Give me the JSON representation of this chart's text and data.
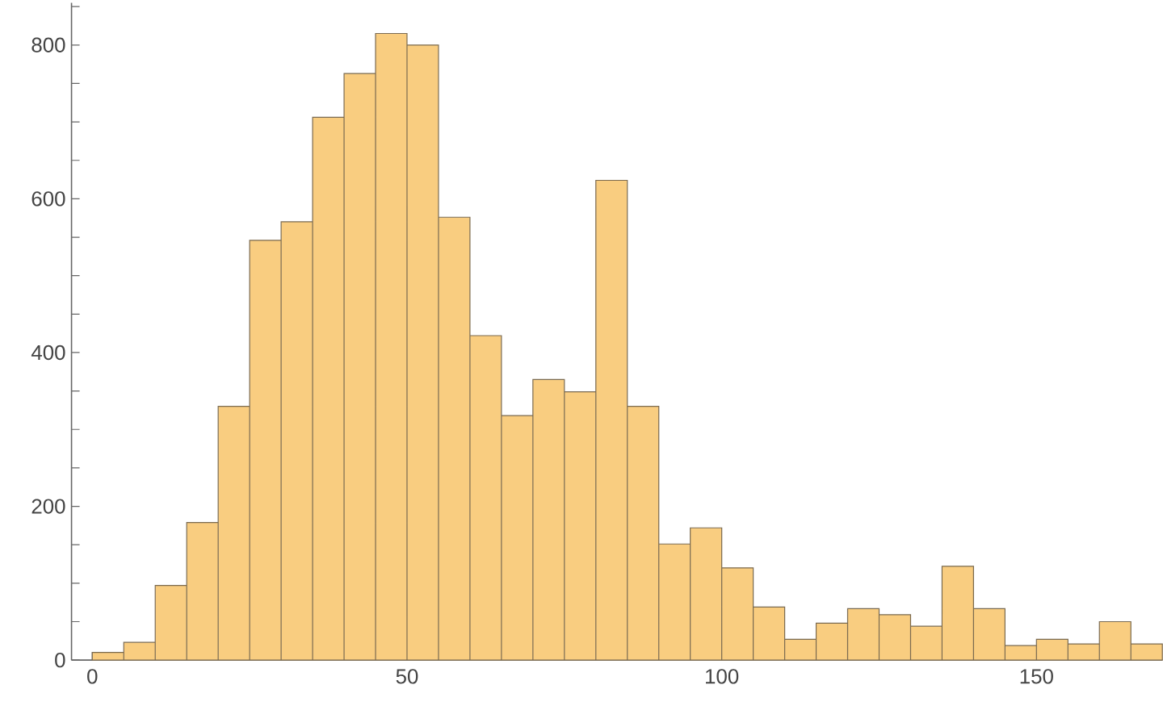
{
  "chart_data": {
    "type": "histogram",
    "bins": [
      0,
      5,
      10,
      15,
      20,
      25,
      30,
      35,
      40,
      45,
      50,
      55,
      60,
      65,
      70,
      75,
      80,
      85,
      90,
      95,
      100,
      105,
      110,
      115,
      120,
      125,
      130,
      135,
      140,
      145,
      150,
      155,
      160,
      165,
      170
    ],
    "values": [
      10,
      23,
      97,
      179,
      330,
      546,
      570,
      706,
      763,
      815,
      800,
      576,
      422,
      318,
      365,
      349,
      624,
      330,
      151,
      172,
      120,
      69,
      27,
      48,
      67,
      59,
      44,
      122,
      67,
      19,
      27,
      21,
      50,
      21
    ],
    "color": "#f9cd80",
    "xlim": [
      -3.3,
      170
    ],
    "ylim": [
      0,
      855
    ],
    "xticks": [
      0,
      50,
      100,
      150
    ],
    "yticks": [
      0,
      {
        "value": 50,
        "label": null
      },
      {
        "value": 100,
        "label": null
      },
      {
        "value": 150,
        "label": null
      },
      200,
      {
        "value": 250,
        "label": null
      },
      {
        "value": 300,
        "label": null
      },
      {
        "value": 350,
        "label": null
      },
      400,
      {
        "value": 450,
        "label": null
      },
      {
        "value": 500,
        "label": null
      },
      {
        "value": 550,
        "label": null
      },
      600,
      {
        "value": 650,
        "label": null
      },
      {
        "value": 700,
        "label": null
      },
      {
        "value": 750,
        "label": null
      },
      800,
      {
        "value": 850,
        "label": null
      }
    ],
    "grid": false
  }
}
